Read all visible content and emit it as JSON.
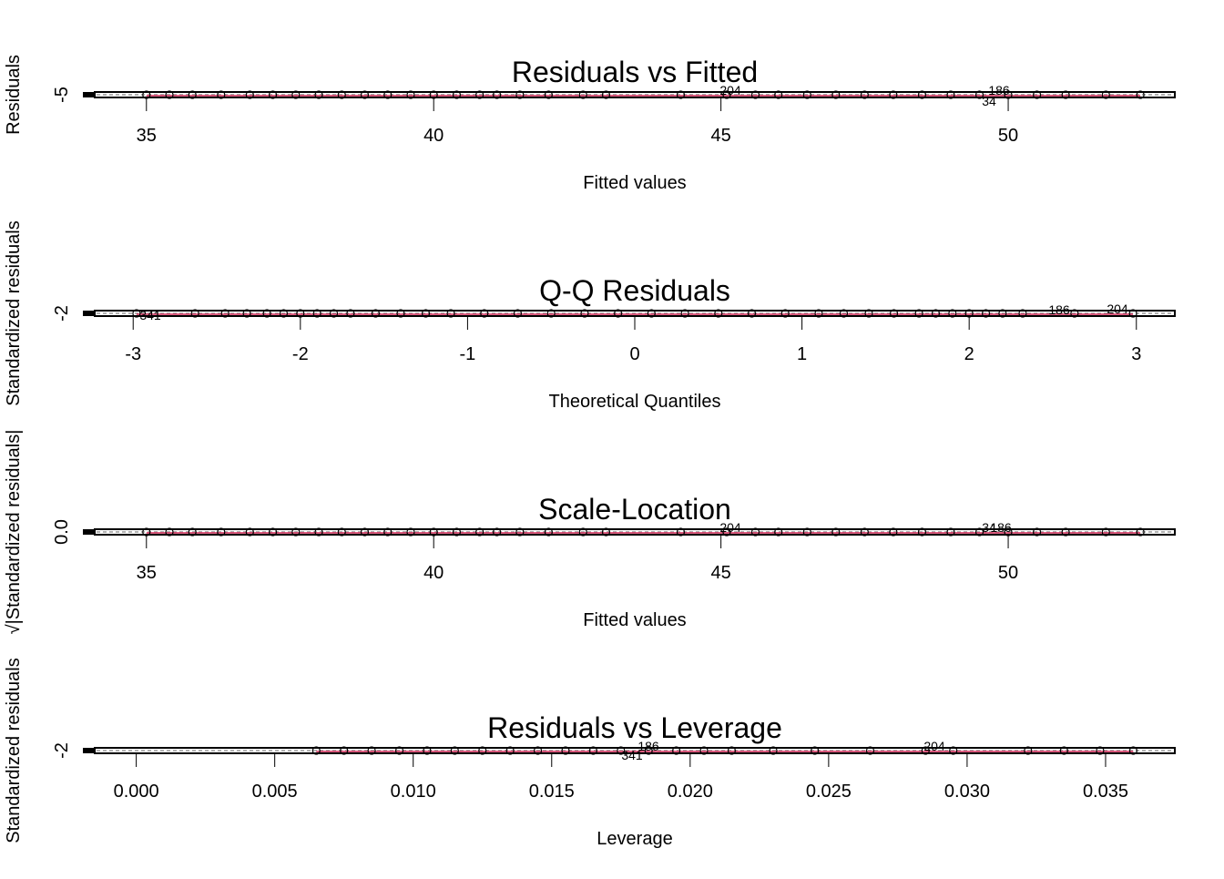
{
  "chart_data": [
    {
      "type": "scatter",
      "title": "Residuals vs Fitted",
      "xlabel": "Fitted values",
      "ylabel": "Residuals",
      "xticks": [
        "35",
        "40",
        "45",
        "50"
      ],
      "xlim": [
        34.1,
        52.9
      ],
      "yticks": [
        "-5"
      ],
      "point_labels": [
        "204",
        "186",
        "34"
      ],
      "points": [
        [
          35.0,
          0
        ],
        [
          35.4,
          0
        ],
        [
          35.8,
          0
        ],
        [
          36.3,
          0
        ],
        [
          36.8,
          0
        ],
        [
          37.2,
          0
        ],
        [
          37.6,
          0
        ],
        [
          38.0,
          0
        ],
        [
          38.4,
          0
        ],
        [
          38.8,
          0
        ],
        [
          39.2,
          0
        ],
        [
          39.6,
          0
        ],
        [
          40.0,
          0
        ],
        [
          40.4,
          0
        ],
        [
          40.8,
          0
        ],
        [
          41.1,
          0
        ],
        [
          41.5,
          0
        ],
        [
          42.0,
          0
        ],
        [
          42.6,
          0
        ],
        [
          43.0,
          0
        ],
        [
          44.3,
          0
        ],
        [
          45.1,
          0
        ],
        [
          45.6,
          0
        ],
        [
          46.0,
          0
        ],
        [
          46.5,
          0
        ],
        [
          47.0,
          0
        ],
        [
          47.5,
          0
        ],
        [
          48.0,
          0
        ],
        [
          48.5,
          0
        ],
        [
          49.0,
          0
        ],
        [
          49.5,
          0
        ],
        [
          50.0,
          0
        ],
        [
          50.5,
          0
        ],
        [
          51.0,
          0
        ],
        [
          51.7,
          0
        ],
        [
          52.3,
          0
        ]
      ]
    },
    {
      "type": "scatter",
      "title": "Q-Q Residuals",
      "xlabel": "Theoretical Quantiles",
      "ylabel": "Standardized residuals",
      "xticks": [
        "-3",
        "-2",
        "-1",
        "0",
        "1",
        "2",
        "3"
      ],
      "xlim": [
        -3.23,
        3.23
      ],
      "yticks": [
        "-2"
      ],
      "point_labels": [
        "341",
        "186",
        "204"
      ],
      "points": [
        [
          -2.98,
          0
        ],
        [
          -2.63,
          0
        ],
        [
          -2.45,
          0
        ],
        [
          -2.32,
          0
        ],
        [
          -2.2,
          0
        ],
        [
          -2.1,
          0
        ],
        [
          -2.0,
          0
        ],
        [
          -1.9,
          0
        ],
        [
          -1.8,
          0
        ],
        [
          -1.7,
          0
        ],
        [
          -1.55,
          0
        ],
        [
          -1.4,
          0
        ],
        [
          -1.25,
          0
        ],
        [
          -1.1,
          0
        ],
        [
          -0.9,
          0
        ],
        [
          -0.7,
          0
        ],
        [
          -0.5,
          0
        ],
        [
          -0.3,
          0
        ],
        [
          -0.1,
          0
        ],
        [
          0.1,
          0
        ],
        [
          0.3,
          0
        ],
        [
          0.5,
          0
        ],
        [
          0.7,
          0
        ],
        [
          0.9,
          0
        ],
        [
          1.1,
          0
        ],
        [
          1.25,
          0
        ],
        [
          1.4,
          0
        ],
        [
          1.55,
          0
        ],
        [
          1.7,
          0
        ],
        [
          1.8,
          0
        ],
        [
          1.9,
          0
        ],
        [
          2.0,
          0
        ],
        [
          2.1,
          0
        ],
        [
          2.2,
          0
        ],
        [
          2.32,
          0
        ],
        [
          2.63,
          0
        ],
        [
          2.98,
          0
        ]
      ]
    },
    {
      "type": "scatter",
      "title": "Scale-Location",
      "xlabel": "Fitted values",
      "ylabel": "√|Standardized residuals|",
      "xticks": [
        "35",
        "40",
        "45",
        "50"
      ],
      "xlim": [
        34.1,
        52.9
      ],
      "yticks": [
        "0.0"
      ],
      "point_labels": [
        "204",
        "34",
        "186"
      ],
      "points": [
        [
          35.0,
          0
        ],
        [
          35.4,
          0
        ],
        [
          35.8,
          0
        ],
        [
          36.3,
          0
        ],
        [
          36.8,
          0
        ],
        [
          37.2,
          0
        ],
        [
          37.6,
          0
        ],
        [
          38.0,
          0
        ],
        [
          38.4,
          0
        ],
        [
          38.8,
          0
        ],
        [
          39.2,
          0
        ],
        [
          39.6,
          0
        ],
        [
          40.0,
          0
        ],
        [
          40.4,
          0
        ],
        [
          40.8,
          0
        ],
        [
          41.1,
          0
        ],
        [
          41.5,
          0
        ],
        [
          42.0,
          0
        ],
        [
          42.6,
          0
        ],
        [
          43.0,
          0
        ],
        [
          44.3,
          0
        ],
        [
          45.1,
          0
        ],
        [
          45.6,
          0
        ],
        [
          46.0,
          0
        ],
        [
          46.5,
          0
        ],
        [
          47.0,
          0
        ],
        [
          47.5,
          0
        ],
        [
          48.0,
          0
        ],
        [
          48.5,
          0
        ],
        [
          49.0,
          0
        ],
        [
          49.5,
          0
        ],
        [
          50.0,
          0
        ],
        [
          50.5,
          0
        ],
        [
          51.0,
          0
        ],
        [
          51.7,
          0
        ],
        [
          52.3,
          0
        ]
      ]
    },
    {
      "type": "scatter",
      "title": "Residuals vs Leverage",
      "xlabel": "Leverage",
      "ylabel": "Standardized residuals",
      "xticks": [
        "0.000",
        "0.005",
        "0.010",
        "0.015",
        "0.020",
        "0.025",
        "0.030",
        "0.035"
      ],
      "xlim": [
        -0.0015,
        0.0375
      ],
      "yticks": [
        "-2"
      ],
      "point_labels": [
        "186",
        "341",
        "204"
      ],
      "points": [
        [
          0.0065,
          0
        ],
        [
          0.0075,
          0
        ],
        [
          0.0085,
          0
        ],
        [
          0.0095,
          0
        ],
        [
          0.0105,
          0
        ],
        [
          0.0115,
          0
        ],
        [
          0.0125,
          0
        ],
        [
          0.0135,
          0
        ],
        [
          0.0145,
          0
        ],
        [
          0.0155,
          0
        ],
        [
          0.0165,
          0
        ],
        [
          0.0175,
          0
        ],
        [
          0.0185,
          0
        ],
        [
          0.0195,
          0
        ],
        [
          0.0205,
          0
        ],
        [
          0.0215,
          0
        ],
        [
          0.023,
          0
        ],
        [
          0.0245,
          0
        ],
        [
          0.0265,
          0
        ],
        [
          0.0285,
          0
        ],
        [
          0.0295,
          0
        ],
        [
          0.0322,
          0
        ],
        [
          0.0335,
          0
        ],
        [
          0.0348,
          0
        ],
        [
          0.036,
          0
        ]
      ]
    }
  ]
}
